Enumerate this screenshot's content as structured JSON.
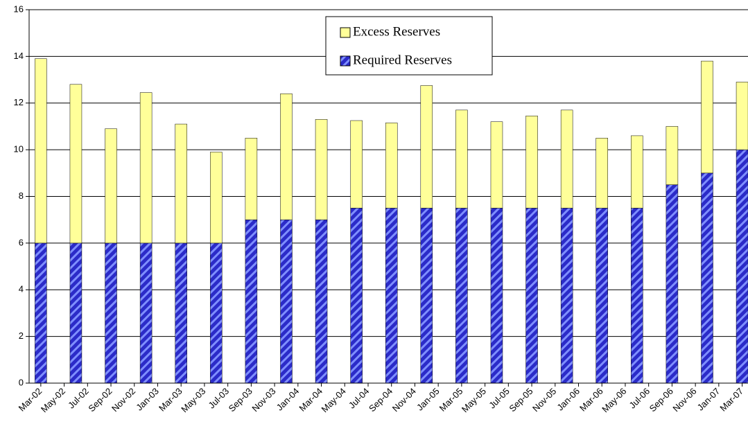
{
  "chart_data": {
    "type": "stacked-bar",
    "x": [
      0,
      3,
      6,
      9,
      12,
      15,
      18,
      21,
      24,
      27,
      30,
      33,
      36,
      39,
      42,
      45,
      48,
      51,
      54,
      57,
      60
    ],
    "xlim": [
      -1,
      60.5
    ],
    "xticks": [
      {
        "value": 0,
        "label": "Mar-02"
      },
      {
        "value": 2,
        "label": "May-02"
      },
      {
        "value": 4,
        "label": "Jul-02"
      },
      {
        "value": 6,
        "label": "Sep-02"
      },
      {
        "value": 8,
        "label": "Nov-02"
      },
      {
        "value": 10,
        "label": "Jan-03"
      },
      {
        "value": 12,
        "label": "Mar-03"
      },
      {
        "value": 14,
        "label": "May-03"
      },
      {
        "value": 16,
        "label": "Jul-03"
      },
      {
        "value": 18,
        "label": "Sep-03"
      },
      {
        "value": 20,
        "label": "Nov-03"
      },
      {
        "value": 22,
        "label": "Jan-04"
      },
      {
        "value": 24,
        "label": "Mar-04"
      },
      {
        "value": 26,
        "label": "May-04"
      },
      {
        "value": 28,
        "label": "Jul-04"
      },
      {
        "value": 30,
        "label": "Sep-04"
      },
      {
        "value": 32,
        "label": "Nov-04"
      },
      {
        "value": 34,
        "label": "Jan-05"
      },
      {
        "value": 36,
        "label": "Mar-05"
      },
      {
        "value": 38,
        "label": "May-05"
      },
      {
        "value": 40,
        "label": "Jul-05"
      },
      {
        "value": 42,
        "label": "Sep-05"
      },
      {
        "value": 44,
        "label": "Nov-05"
      },
      {
        "value": 46,
        "label": "Jan-06"
      },
      {
        "value": 48,
        "label": "Mar-06"
      },
      {
        "value": 50,
        "label": "May-06"
      },
      {
        "value": 52,
        "label": "Jul-06"
      },
      {
        "value": 54,
        "label": "Sep-06"
      },
      {
        "value": 56,
        "label": "Nov-06"
      },
      {
        "value": 58,
        "label": "Jan-07"
      },
      {
        "value": 60,
        "label": "Mar-07"
      }
    ],
    "ylim": [
      0,
      16
    ],
    "yticks": [
      0,
      2,
      4,
      6,
      8,
      10,
      12,
      14,
      16
    ],
    "grid": true,
    "legend": "top-center",
    "series": [
      {
        "name": "Required Reserves",
        "color": "#2b2bc8",
        "values": [
          6,
          6,
          6,
          6,
          6,
          6,
          7,
          7,
          7,
          7.5,
          7.5,
          7.5,
          7.5,
          7.5,
          7.5,
          7.5,
          7.5,
          7.5,
          8.5,
          9,
          10
        ]
      },
      {
        "name": "Excess Reserves",
        "color": "#ffff99",
        "values": [
          7.9,
          6.8,
          4.9,
          6.45,
          5.1,
          3.9,
          3.5,
          5.4,
          4.3,
          3.75,
          3.65,
          5.25,
          4.2,
          3.7,
          3.95,
          4.2,
          3.0,
          3.1,
          2.5,
          4.8,
          2.9
        ]
      }
    ]
  }
}
